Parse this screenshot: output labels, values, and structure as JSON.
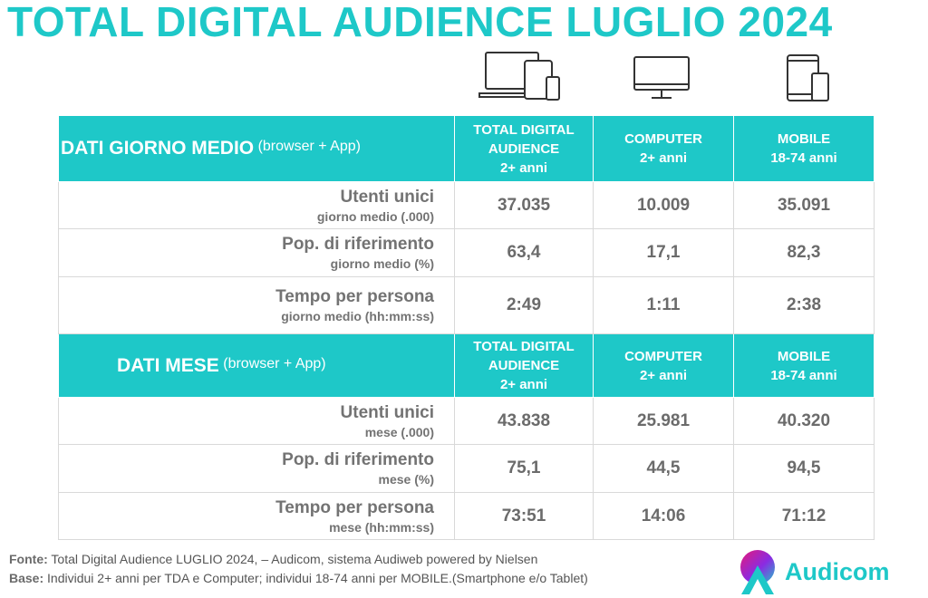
{
  "title": "TOTAL DIGITAL AUDIENCE LUGLIO 2024",
  "icons": [
    "laptop-tablet-phone-icon",
    "desktop-monitor-icon",
    "tablet-phone-icon"
  ],
  "columns": [
    {
      "line1": "TOTAL DIGITAL",
      "line2": "AUDIENCE",
      "line3": "2+ anni"
    },
    {
      "line1": "COMPUTER",
      "line2": "2+ anni"
    },
    {
      "line1": "MOBILE",
      "line2": "18-74 anni"
    }
  ],
  "sections": [
    {
      "label": "DATI GIORNO MEDIO",
      "sub": "(browser + App)",
      "rows": [
        {
          "label": "Utenti unici",
          "sublabel": "giorno medio (.000)",
          "values": [
            "37.035",
            "10.009",
            "35.091"
          ]
        },
        {
          "label": "Pop. di riferimento",
          "sublabel": "giorno medio (%)",
          "values": [
            "63,4",
            "17,1",
            "82,3"
          ]
        },
        {
          "label": "Tempo per persona",
          "sublabel": "giorno medio (hh:mm:ss)",
          "values": [
            "2:49",
            "1:11",
            "2:38"
          ]
        }
      ]
    },
    {
      "label": "DATI MESE",
      "sub": "(browser + App)",
      "rows": [
        {
          "label": "Utenti unici",
          "sublabel": "mese (.000)",
          "values": [
            "43.838",
            "25.981",
            "40.320"
          ]
        },
        {
          "label": "Pop. di riferimento",
          "sublabel": "mese (%)",
          "values": [
            "75,1",
            "44,5",
            "94,5"
          ]
        },
        {
          "label": "Tempo per persona",
          "sublabel": "mese (hh:mm:ss)",
          "values": [
            "73:51",
            "14:06",
            "71:12"
          ]
        }
      ]
    }
  ],
  "footer": {
    "fonte_label": "Fonte:",
    "fonte_text": "Total Digital Audience LUGLIO 2024, – Audicom, sistema Audiweb powered by Nielsen",
    "base_label": "Base:",
    "base_text": "Individui 2+ anni per TDA e Computer; individui 18-74 anni per MOBILE.(Smartphone e/o Tablet)"
  },
  "logo": {
    "text": "Audicom",
    "color": "#1ec8c8"
  },
  "colors": {
    "accent": "#1ec8c8",
    "text": "#6e6e6e"
  }
}
